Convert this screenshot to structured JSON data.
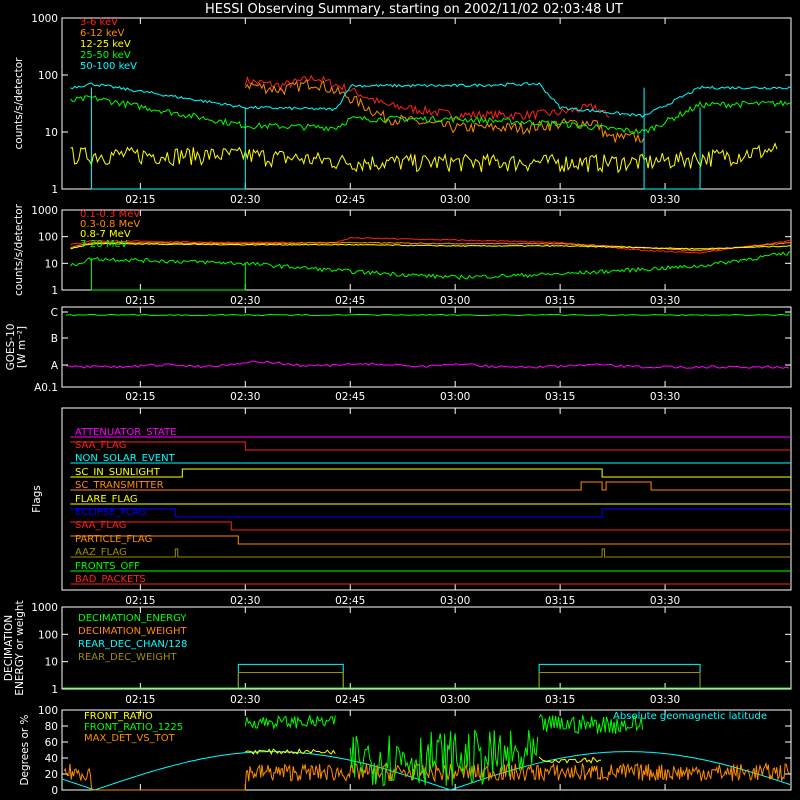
{
  "title": "HESSI Observing Summary, starting on 2002/11/02 02:03:48 UT",
  "time_ticks": [
    "02:15",
    "02:30",
    "02:45",
    "03:00",
    "03:15",
    "03:30"
  ],
  "colors": {
    "red": "#ff2020",
    "orange": "#ff8c00",
    "yellow": "#ffff00",
    "green": "#00ff00",
    "cyan": "#00ffff",
    "magenta": "#ff00ff",
    "blue": "#0000ff",
    "olive": "#a08c00",
    "white": "#ffffff"
  },
  "chart_data": [
    {
      "id": "panel1",
      "type": "line",
      "ylabel": "counts/s/detector",
      "yscale": "log",
      "ylim": [
        1,
        1000
      ],
      "yticks": [
        "1",
        "10",
        "100",
        "1000"
      ],
      "xlim": [
        "02:03:48",
        "03:48"
      ],
      "series": [
        {
          "name": "3-6 keV",
          "color": "#ff2020",
          "x": [
            "02:30",
            "02:35",
            "02:40",
            "02:45",
            "02:50",
            "03:00",
            "03:10",
            "03:15",
            "03:20",
            "03:22"
          ],
          "values": [
            80,
            65,
            90,
            55,
            30,
            20,
            20,
            22,
            28,
            18
          ]
        },
        {
          "name": "6-12 keV",
          "color": "#ff8c00",
          "x": [
            "02:30",
            "02:35",
            "02:40",
            "02:45",
            "02:50",
            "03:00",
            "03:10",
            "03:15",
            "03:20",
            "03:22",
            "03:27"
          ],
          "values": [
            70,
            55,
            75,
            40,
            18,
            12,
            12,
            14,
            15,
            8,
            8
          ]
        },
        {
          "name": "12-25 keV",
          "color": "#ffff00",
          "x": [
            "02:05",
            "02:08",
            "02:30",
            "02:45",
            "03:00",
            "03:15",
            "03:27",
            "03:40",
            "03:46"
          ],
          "values": [
            4,
            4,
            4,
            3,
            3,
            3,
            3,
            4,
            5
          ]
        },
        {
          "name": "25-50 keV",
          "color": "#00ff00",
          "x": [
            "02:05",
            "02:08",
            "02:30",
            "02:43",
            "02:45",
            "03:00",
            "03:15",
            "03:27",
            "03:35",
            "03:48"
          ],
          "values": [
            35,
            40,
            13,
            12,
            17,
            17,
            14,
            10,
            30,
            32
          ]
        },
        {
          "name": "50-100 keV",
          "color": "#00ffff",
          "x": [
            "02:05",
            "02:08",
            "02:30",
            "02:43",
            "02:45",
            "03:00",
            "03:12",
            "03:15",
            "03:27",
            "03:35",
            "03:48"
          ],
          "values": [
            60,
            70,
            27,
            25,
            65,
            65,
            70,
            27,
            19,
            60,
            60
          ]
        }
      ]
    },
    {
      "id": "panel2",
      "type": "line",
      "ylabel": "counts/s/detector",
      "yscale": "log",
      "ylim": [
        1,
        1000
      ],
      "yticks": [
        "1",
        "10",
        "100",
        "1000"
      ],
      "series": [
        {
          "name": "0.1-0.3 MeV",
          "color": "#ff2020",
          "x": [
            "02:05",
            "02:08",
            "02:30",
            "02:43",
            "02:45",
            "03:00",
            "03:15",
            "03:27",
            "03:35",
            "03:48"
          ],
          "values": [
            50,
            70,
            60,
            60,
            90,
            75,
            60,
            30,
            25,
            70
          ]
        },
        {
          "name": "0.3-0.8 MeV",
          "color": "#ff8c00",
          "x": [
            "02:05",
            "02:08",
            "02:30",
            "02:45",
            "03:00",
            "03:15",
            "03:35",
            "03:48"
          ],
          "values": [
            40,
            60,
            55,
            60,
            55,
            55,
            30,
            60
          ]
        },
        {
          "name": "0.8-7 MeV",
          "color": "#ffff00",
          "x": [
            "02:05",
            "02:08",
            "02:30",
            "02:45",
            "03:00",
            "03:15",
            "03:35",
            "03:48"
          ],
          "values": [
            35,
            55,
            50,
            50,
            45,
            45,
            35,
            45
          ]
        },
        {
          "name": "7-20 MeV",
          "color": "#00ff00",
          "x": [
            "02:05",
            "02:08",
            "02:30",
            "02:45",
            "03:00",
            "03:15",
            "03:35",
            "03:48"
          ],
          "values": [
            8,
            15,
            10,
            5,
            3,
            4,
            8,
            25
          ]
        }
      ]
    },
    {
      "id": "panel3",
      "type": "line",
      "ylabel": "GOES-10",
      "ylabel2": "[W m⁻²]",
      "yticks": [
        "A0.1",
        "A",
        "B",
        "C"
      ],
      "series": [
        {
          "name": "",
          "color": "#00ff00",
          "x": [
            "02:05",
            "03:48"
          ],
          "values": [
            "C",
            "C"
          ]
        },
        {
          "name": "",
          "color": "#ff00ff",
          "x": [
            "02:05",
            "02:15",
            "02:30",
            "02:45",
            "03:00",
            "03:15",
            "03:30",
            "03:48"
          ],
          "values": [
            "A",
            "A",
            "A+",
            "A",
            "A",
            "A+",
            "A",
            "A"
          ]
        }
      ]
    },
    {
      "id": "panel4",
      "type": "flags",
      "ylabel": "Flags",
      "flags": [
        {
          "label": "ATTENUATOR_STATE",
          "color": "#ff00ff"
        },
        {
          "label": "SAA_FLAG",
          "color": "#ff2020"
        },
        {
          "label": "NON_SOLAR_EVENT",
          "color": "#00ffff"
        },
        {
          "label": "SC_IN_SUNLIGHT",
          "color": "#ffff00"
        },
        {
          "label": "SC_TRANSMITTER",
          "color": "#ff8c00"
        },
        {
          "label": "FLARE_FLAG",
          "color": "#ffff00"
        },
        {
          "label": "ECLIPSE_FLAG",
          "color": "#0000ff"
        },
        {
          "label": "SAA_FLAG",
          "color": "#ff2020"
        },
        {
          "label": "PARTICLE_FLAG",
          "color": "#ff8c00"
        },
        {
          "label": "AAZ_FLAG",
          "color": "#a08c00"
        },
        {
          "label": "FRONTS_OFF",
          "color": "#00ff00"
        },
        {
          "label": "BAD_PACKETS",
          "color": "#ff2020"
        }
      ]
    },
    {
      "id": "panel5",
      "type": "line",
      "ylabel": "DECIMATION",
      "ylabel2": "ENERGY or weight",
      "yscale": "log",
      "ylim": [
        1,
        1000
      ],
      "yticks": [
        "1",
        "10",
        "100",
        "1000"
      ],
      "series": [
        {
          "name": "DECIMATION_ENERGY",
          "color": "#00ff00"
        },
        {
          "name": "DECIMATION_WEIGHT",
          "color": "#ff8c00"
        },
        {
          "name": "REAR_DEC_CHAN/128",
          "color": "#00ffff"
        },
        {
          "name": "REAR_DEC_WEIGHT",
          "color": "#a08c00"
        }
      ]
    },
    {
      "id": "panel6",
      "type": "line",
      "ylabel": "Degrees or %",
      "ylim": [
        0,
        100
      ],
      "yticks": [
        "0",
        "20",
        "40",
        "60",
        "80",
        "100"
      ],
      "annotation": "Absolute geomagnetic latitude",
      "series": [
        {
          "name": "FRONT_RATIO",
          "color": "#ffff00"
        },
        {
          "name": "FRONT_RATIO_1225",
          "color": "#00ff00"
        },
        {
          "name": "MAX_DET_VS_TOT",
          "color": "#ff8c00"
        }
      ]
    }
  ]
}
